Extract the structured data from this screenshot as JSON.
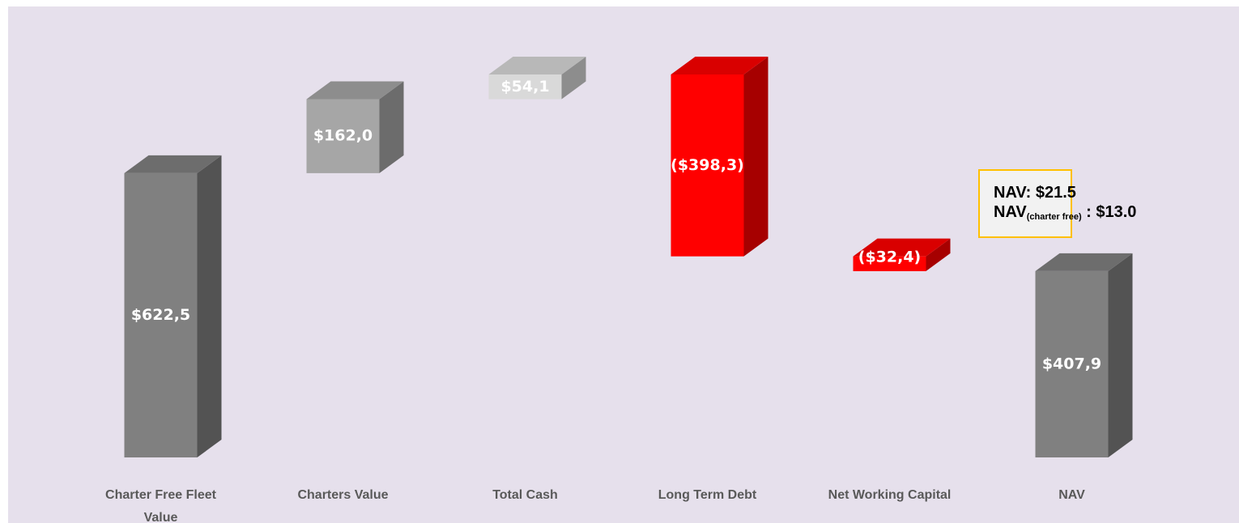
{
  "chart_data": {
    "type": "waterfall",
    "categories": [
      "Charter Free Fleet Value",
      "Charters Value",
      "Total Cash",
      "Long Term Debt",
      "Net Working Capital",
      "NAV"
    ],
    "values": [
      622.5,
      162.0,
      54.1,
      -398.3,
      -32.4,
      407.9
    ],
    "value_labels": [
      "$622,5",
      "$162,0",
      "$54,1",
      "($398,3)",
      "($32,4)",
      "$407,9"
    ],
    "colors": [
      "#808080",
      "#a6a6a6",
      "#d9d9d9",
      "#ff0000",
      "#ff0000",
      "#808080"
    ],
    "annotation": {
      "line1": "NAV: $21.5",
      "line2": [
        "NAV",
        "(charter free)",
        " : $13.0"
      ]
    }
  }
}
